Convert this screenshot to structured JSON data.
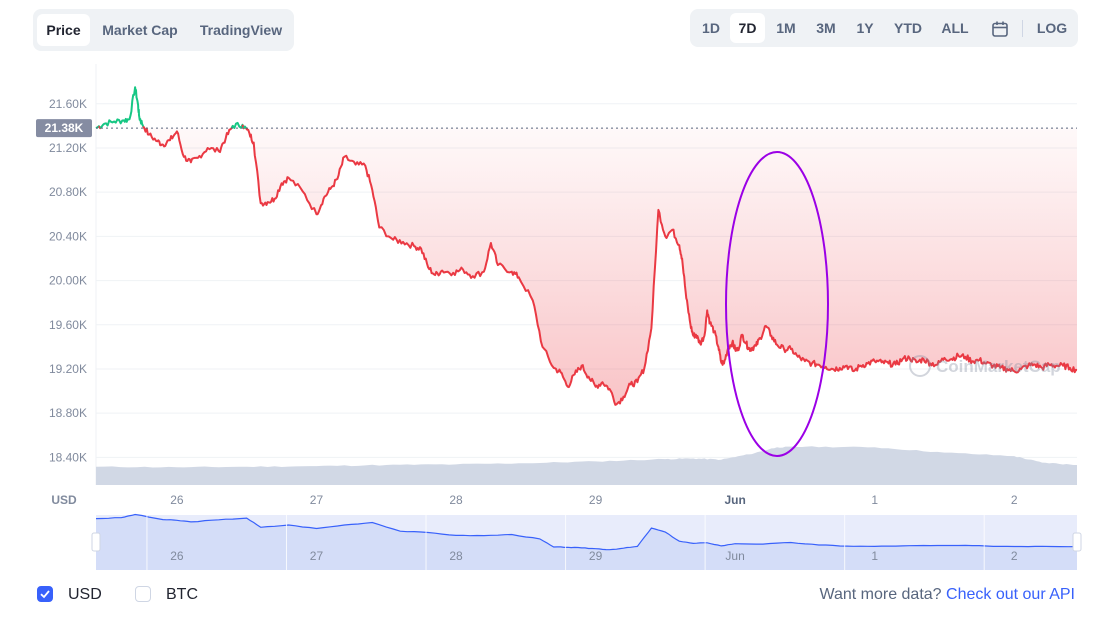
{
  "tabs": [
    "Price",
    "Market Cap",
    "TradingView"
  ],
  "ranges": [
    "1D",
    "7D",
    "1M",
    "3M",
    "1Y",
    "YTD",
    "ALL",
    "LOG"
  ],
  "active_range": "7D",
  "footer": {
    "usd_label": "USD",
    "btc_label": "BTC",
    "api_text": "Want more data?",
    "api_link": "Check out our API"
  },
  "colors": {
    "up": "#16c784",
    "down": "#ea3943",
    "volume": "#cfd6e4",
    "navigator_line": "#3861fb",
    "accent": "#3861fb",
    "annotation": "#9b00e6"
  },
  "chart_data": {
    "type": "line",
    "currency_label": "USD",
    "y_ticks": [
      "21.60K",
      "21.20K",
      "20.80K",
      "20.40K",
      "20.00K",
      "19.60K",
      "19.20K",
      "18.80K",
      "18.40K"
    ],
    "x_ticks": [
      "26",
      "27",
      "28",
      "29",
      "Jun",
      "1",
      "2"
    ],
    "navigator_ticks": [
      "26",
      "27",
      "28",
      "29",
      "Jun",
      "1",
      "2"
    ],
    "current_price_label": "21.38K",
    "current_price": 21380,
    "ylim": [
      18150,
      21960
    ],
    "x_unit": "days since 25 May 00:00 (x tick 26 = 1.0)",
    "xlim": [
      0.42,
      7.45
    ],
    "watermark": "CoinMarketCap",
    "series": [
      {
        "name": "Price",
        "x": [
          0.42,
          0.48,
          0.55,
          0.62,
          0.66,
          0.7,
          0.72,
          0.73,
          0.75,
          0.8,
          0.86,
          0.9,
          0.95,
          1.0,
          1.05,
          1.1,
          1.15,
          1.22,
          1.3,
          1.35,
          1.4,
          1.47,
          1.52,
          1.55,
          1.6,
          1.65,
          1.7,
          1.75,
          1.8,
          1.9,
          2.0,
          2.05,
          2.1,
          2.15,
          2.2,
          2.28,
          2.35,
          2.4,
          2.45,
          2.55,
          2.62,
          2.7,
          2.75,
          2.8,
          2.85,
          2.9,
          2.98,
          3.05,
          3.12,
          3.2,
          3.25,
          3.3,
          3.4,
          3.45,
          3.55,
          3.62,
          3.7,
          3.75,
          3.8,
          3.85,
          3.9,
          3.95,
          4.0,
          4.05,
          4.1,
          4.15,
          4.2,
          4.25,
          4.3,
          4.35,
          4.4,
          4.45,
          4.5,
          4.55,
          4.6,
          4.62,
          4.65,
          4.68,
          4.7,
          4.72,
          4.75,
          4.78,
          4.8,
          4.82,
          4.85,
          4.88,
          4.9,
          4.92,
          4.95,
          4.98,
          5.0,
          5.02,
          5.05,
          5.08,
          5.1,
          5.12,
          5.15,
          5.18,
          5.22,
          5.26,
          5.3,
          5.35,
          5.4,
          5.45,
          5.5,
          5.55,
          5.6,
          5.65,
          5.7,
          5.75,
          5.8,
          5.85,
          5.9,
          5.95,
          6.0,
          6.05,
          6.1,
          6.15,
          6.2,
          6.25,
          6.3,
          6.35,
          6.4,
          6.45,
          6.5,
          6.55,
          6.6,
          6.65,
          6.7,
          6.75,
          6.8,
          6.85,
          6.9,
          6.95,
          7.0,
          7.05,
          7.1,
          7.15,
          7.2,
          7.25,
          7.3,
          7.35,
          7.4,
          7.45
        ],
        "y": [
          21380,
          21420,
          21440,
          21450,
          21460,
          21750,
          21600,
          21480,
          21420,
          21320,
          21260,
          21230,
          21270,
          21350,
          21120,
          21070,
          21110,
          21200,
          21170,
          21290,
          21400,
          21410,
          21330,
          21250,
          20700,
          20710,
          20740,
          20880,
          20930,
          20810,
          20600,
          20740,
          20830,
          20920,
          21120,
          21050,
          21040,
          20820,
          20480,
          20370,
          20350,
          20310,
          20290,
          20120,
          20050,
          20090,
          20070,
          20100,
          20040,
          20080,
          20340,
          20140,
          20080,
          20030,
          19820,
          19400,
          19210,
          19170,
          19040,
          19150,
          19230,
          19130,
          19040,
          19080,
          19020,
          18880,
          18950,
          19060,
          19080,
          19210,
          19570,
          20640,
          20400,
          20460,
          20320,
          20200,
          19840,
          19600,
          19500,
          19510,
          19430,
          19500,
          19730,
          19620,
          19540,
          19400,
          19260,
          19250,
          19390,
          19440,
          19380,
          19370,
          19510,
          19430,
          19380,
          19390,
          19410,
          19480,
          19590,
          19500,
          19420,
          19380,
          19380,
          19310,
          19270,
          19250,
          19240,
          19220,
          19200,
          19210,
          19230,
          19180,
          19230,
          19250,
          19270,
          19260,
          19250,
          19240,
          19290,
          19300,
          19260,
          19290,
          19250,
          19240,
          19300,
          19290,
          19320,
          19310,
          19270,
          19280,
          19250,
          19230,
          19210,
          19200,
          19180,
          19200,
          19230,
          19240,
          19210,
          19240,
          19230,
          19230,
          19210,
          19190
        ]
      },
      {
        "name": "Volume",
        "x": [
          0.42,
          1.0,
          1.5,
          2.0,
          2.5,
          3.0,
          3.5,
          4.0,
          4.5,
          4.7,
          4.9,
          5.1,
          5.3,
          5.5,
          6.0,
          6.5,
          7.0,
          7.2,
          7.45
        ],
        "y": [
          0.31,
          0.3,
          0.31,
          0.32,
          0.34,
          0.35,
          0.37,
          0.4,
          0.44,
          0.45,
          0.43,
          0.52,
          0.64,
          0.65,
          0.64,
          0.55,
          0.49,
          0.38,
          0.34
        ]
      }
    ],
    "navigator": {
      "x": [
        0.42,
        0.6,
        0.7,
        0.9,
        1.0,
        1.1,
        1.3,
        1.5,
        1.6,
        1.8,
        2.0,
        2.2,
        2.4,
        2.6,
        2.8,
        3.0,
        3.2,
        3.4,
        3.6,
        3.7,
        3.8,
        3.9,
        4.0,
        4.1,
        4.2,
        4.3,
        4.4,
        4.5,
        4.6,
        4.7,
        4.8,
        4.9,
        5.0,
        5.2,
        5.4,
        5.6,
        5.8,
        6.0,
        6.2,
        6.4,
        6.6,
        6.8,
        7.0,
        7.2,
        7.45
      ],
      "y": [
        21380,
        21450,
        21700,
        21300,
        21250,
        21120,
        21290,
        21420,
        20700,
        20880,
        20610,
        20880,
        21080,
        20400,
        20300,
        20070,
        20060,
        20140,
        19800,
        19170,
        19150,
        19100,
        19040,
        18960,
        19080,
        19220,
        20640,
        20330,
        19620,
        19450,
        19500,
        19260,
        19430,
        19400,
        19520,
        19330,
        19240,
        19220,
        19260,
        19280,
        19290,
        19250,
        19210,
        19230,
        19200
      ]
    }
  }
}
